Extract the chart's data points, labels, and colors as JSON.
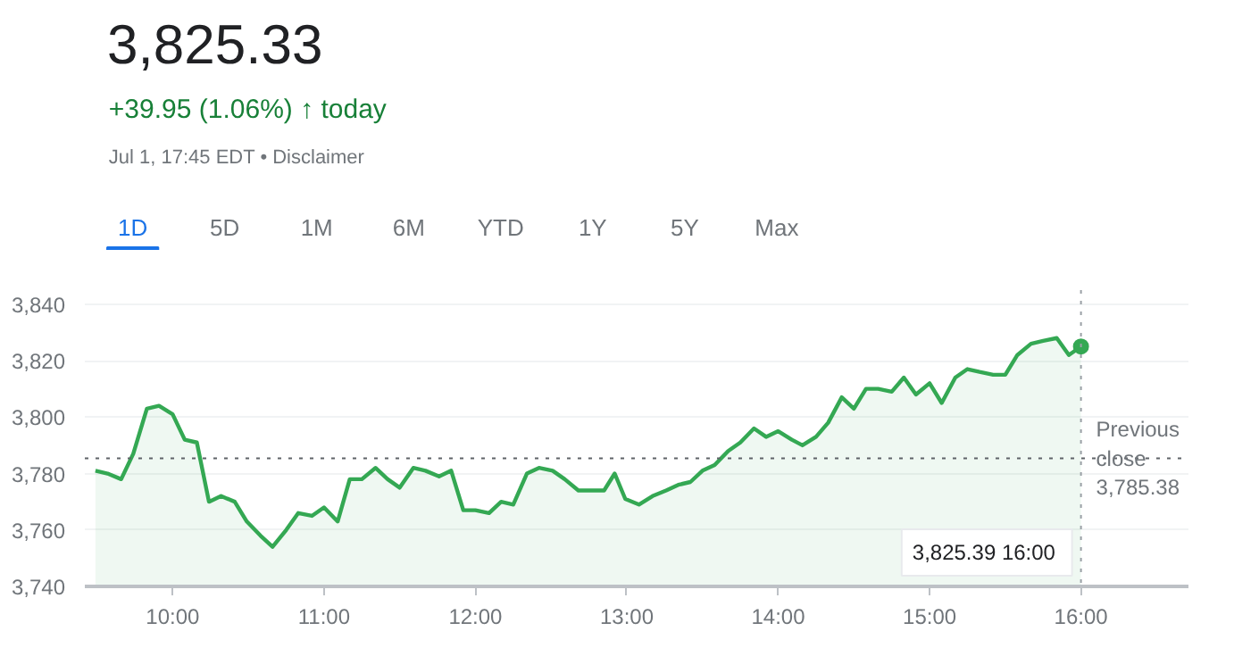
{
  "chart_data": {
    "type": "area",
    "title": "3,825.33",
    "subtitle": "+39.95 (1.06%) ↑ today",
    "annotations": [
      "Jul 1, 17:45 EDT • Disclaimer",
      "1D",
      "5D",
      "1M",
      "6M",
      "YTD",
      "1Y",
      "5Y",
      "Max"
    ],
    "x": [
      9.49,
      9.57,
      9.66,
      9.74,
      9.83,
      9.91,
      10.0,
      10.08,
      10.16,
      10.24,
      10.32,
      10.41,
      10.49,
      10.58,
      10.66,
      10.75,
      10.83,
      10.92,
      11.0,
      11.09,
      11.17,
      11.25,
      11.34,
      11.42,
      11.5,
      11.59,
      11.67,
      11.76,
      11.84,
      11.92,
      12.0,
      12.09,
      12.17,
      12.25,
      12.34,
      12.42,
      12.51,
      12.59,
      12.68,
      12.76,
      12.85,
      12.92,
      12.99,
      13.08,
      13.17,
      13.26,
      13.34,
      13.42,
      13.5,
      13.58,
      13.67,
      13.75,
      13.84,
      13.92,
      14.0,
      14.09,
      14.16,
      14.25,
      14.33,
      14.42,
      14.5,
      14.58,
      14.66,
      14.75,
      14.83,
      14.91,
      15.0,
      15.08,
      15.17,
      15.25,
      15.33,
      15.42,
      15.5,
      15.58,
      15.67,
      15.75,
      15.84,
      15.92,
      16.0
    ],
    "series": [
      {
        "color": "#34a853",
        "values": [
          3781,
          3780,
          3778,
          3787,
          3803,
          3804,
          3801,
          3792,
          3791,
          3770,
          3772,
          3770,
          3763,
          3758,
          3754,
          3760,
          3766,
          3765,
          3768,
          3763,
          3778,
          3778,
          3782,
          3778,
          3775,
          3782,
          3781,
          3779,
          3781,
          3767,
          3767,
          3766,
          3770,
          3769,
          3780,
          3782,
          3781,
          3778,
          3774,
          3774,
          3774,
          3780,
          3771,
          3769,
          3772,
          3774,
          3776,
          3777,
          3781,
          3783,
          3788,
          3791,
          3796,
          3793,
          3795,
          3792,
          3790,
          3793,
          3798,
          3807,
          3803,
          3810,
          3810,
          3809,
          3814,
          3808,
          3812,
          3805,
          3814,
          3817,
          3816,
          3815,
          3815,
          3822,
          3826,
          3827,
          3828,
          3822,
          3825
        ]
      }
    ],
    "xlim": [
      9.42,
      16.71
    ],
    "ylim": [
      3740,
      3845
    ],
    "xticks": [
      {
        "value": 10,
        "label": "10:00"
      },
      {
        "value": 11,
        "label": "11:00"
      },
      {
        "value": 12,
        "label": "12:00"
      },
      {
        "value": 13,
        "label": "13:00"
      },
      {
        "value": 14,
        "label": "14:00"
      },
      {
        "value": 15,
        "label": "15:00"
      },
      {
        "value": 16,
        "label": "16:00"
      }
    ],
    "yticks": [
      {
        "value": 3740,
        "label": "3,740"
      },
      {
        "value": 3760,
        "label": "3,760"
      },
      {
        "value": 3780,
        "label": "3,780"
      },
      {
        "value": 3800,
        "label": "3,800"
      },
      {
        "value": 3820,
        "label": "3,820"
      },
      {
        "value": 3840,
        "label": "3,840"
      }
    ],
    "ref_lines": [
      {
        "axis": "y",
        "value": 3785.38,
        "label": "Previous close 3,785.38",
        "color": "#5f6368",
        "line_style": "dotted"
      },
      {
        "axis": "x",
        "value": 16,
        "label": "3,825.39  16:00",
        "color": "#9aa0a6",
        "line_style": "dotted"
      }
    ],
    "grid": "y",
    "marker": "none",
    "line_style": "solid"
  }
}
